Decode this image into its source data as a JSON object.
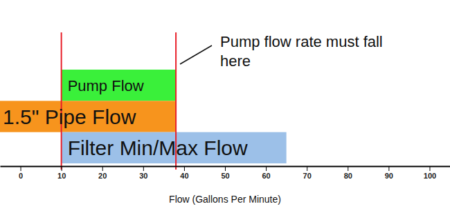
{
  "chart_data": {
    "type": "bar",
    "orientation": "horizontal",
    "categories": [
      "Pump Flow",
      "1.5\" Pipe Flow",
      "Filter Min/Max Flow"
    ],
    "values": [
      [
        10,
        38
      ],
      [
        -5,
        38
      ],
      [
        10,
        65
      ]
    ],
    "colors": [
      "#3af03a",
      "#f7941d",
      "#9cc0e8"
    ],
    "xlim": [
      -5,
      105
    ],
    "xticks": [
      0,
      10,
      20,
      30,
      40,
      50,
      60,
      70,
      80,
      90,
      100
    ],
    "x_label": "Flow (Gallons Per Minute)",
    "tick_labels": "x",
    "reference_lines": {
      "x": [
        10,
        38
      ],
      "color": "#e8202a"
    },
    "annotations": [
      {
        "text": "Pump flow rate must fall here"
      }
    ]
  }
}
